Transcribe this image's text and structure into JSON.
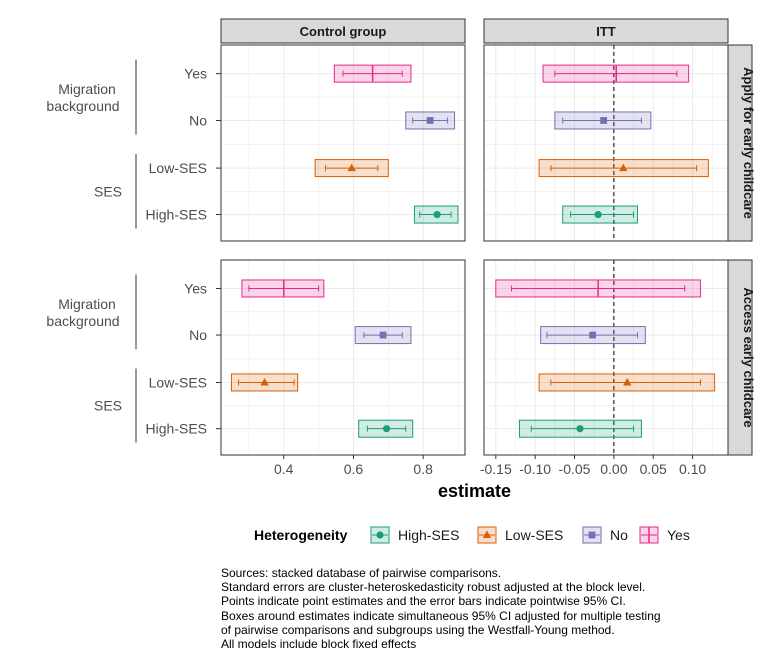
{
  "chart_data": {
    "type": "forest",
    "columns": [
      "Control group",
      "ITT"
    ],
    "rows": [
      "Apply for early childcare",
      "Access early childcare"
    ],
    "xlabel": "estimate",
    "x_ticks": {
      "Control group": [
        "0.4",
        "0.6",
        "0.8"
      ],
      "ITT": [
        "-0.15",
        "-0.10",
        "-0.05",
        "0.00",
        "0.05",
        "0.10"
      ]
    },
    "xlim": {
      "Control group": [
        0.22,
        0.92
      ],
      "ITT": [
        -0.165,
        0.145
      ]
    },
    "reference_line": {
      "panel_column": "ITT",
      "x": 0,
      "style": "dashed"
    },
    "groups": [
      {
        "label": "Migration background",
        "levels": [
          "Yes",
          "No"
        ]
      },
      {
        "label": "SES",
        "levels": [
          "Low-SES",
          "High-SES"
        ]
      }
    ],
    "legend": {
      "title": "Heterogeneity",
      "position": "bottom",
      "entries": [
        {
          "name": "High-SES",
          "color": "#1b9e77",
          "marker": "circle"
        },
        {
          "name": "Low-SES",
          "color": "#d95f02",
          "marker": "triangle"
        },
        {
          "name": "No",
          "color": "#7570b3",
          "marker": "square"
        },
        {
          "name": "Yes",
          "color": "#e7298a",
          "marker": "cross"
        }
      ]
    },
    "panels": [
      {
        "row": "Apply for early childcare",
        "col": "Control group",
        "estimates": [
          {
            "level": "Yes",
            "estimate": 0.655,
            "ci": [
              0.57,
              0.74
            ],
            "box": [
              0.545,
              0.765
            ]
          },
          {
            "level": "No",
            "estimate": 0.82,
            "ci": [
              0.77,
              0.87
            ],
            "box": [
              0.75,
              0.89
            ]
          },
          {
            "level": "Low-SES",
            "estimate": 0.595,
            "ci": [
              0.52,
              0.67
            ],
            "box": [
              0.49,
              0.7
            ]
          },
          {
            "level": "High-SES",
            "estimate": 0.84,
            "ci": [
              0.79,
              0.88
            ],
            "box": [
              0.775,
              0.9
            ]
          }
        ]
      },
      {
        "row": "Apply for early childcare",
        "col": "ITT",
        "estimates": [
          {
            "level": "Yes",
            "estimate": 0.003,
            "ci": [
              -0.075,
              0.08
            ],
            "box": [
              -0.09,
              0.095
            ]
          },
          {
            "level": "No",
            "estimate": -0.013,
            "ci": [
              -0.065,
              0.035
            ],
            "box": [
              -0.075,
              0.047
            ]
          },
          {
            "level": "Low-SES",
            "estimate": 0.012,
            "ci": [
              -0.08,
              0.105
            ],
            "box": [
              -0.095,
              0.12
            ]
          },
          {
            "level": "High-SES",
            "estimate": -0.02,
            "ci": [
              -0.055,
              0.025
            ],
            "box": [
              -0.065,
              0.03
            ]
          }
        ]
      },
      {
        "row": "Access early childcare",
        "col": "Control group",
        "estimates": [
          {
            "level": "Yes",
            "estimate": 0.4,
            "ci": [
              0.3,
              0.5
            ],
            "box": [
              0.28,
              0.515
            ]
          },
          {
            "level": "No",
            "estimate": 0.685,
            "ci": [
              0.63,
              0.74
            ],
            "box": [
              0.605,
              0.765
            ]
          },
          {
            "level": "Low-SES",
            "estimate": 0.345,
            "ci": [
              0.27,
              0.43
            ],
            "box": [
              0.25,
              0.44
            ]
          },
          {
            "level": "High-SES",
            "estimate": 0.695,
            "ci": [
              0.64,
              0.75
            ],
            "box": [
              0.615,
              0.77
            ]
          }
        ]
      },
      {
        "row": "Access early childcare",
        "col": "ITT",
        "estimates": [
          {
            "level": "Yes",
            "estimate": -0.02,
            "ci": [
              -0.13,
              0.09
            ],
            "box": [
              -0.15,
              0.11
            ]
          },
          {
            "level": "No",
            "estimate": -0.027,
            "ci": [
              -0.085,
              0.03
            ],
            "box": [
              -0.093,
              0.04
            ]
          },
          {
            "level": "Low-SES",
            "estimate": 0.017,
            "ci": [
              -0.08,
              0.11
            ],
            "box": [
              -0.095,
              0.128
            ]
          },
          {
            "level": "High-SES",
            "estimate": -0.043,
            "ci": [
              -0.105,
              0.025
            ],
            "box": [
              -0.12,
              0.035
            ]
          }
        ]
      }
    ]
  },
  "caption": [
    "Sources: stacked database of pairwise comparisons.",
    "Standard errors are cluster-heteroskedasticity robust adjusted at the block level.",
    "Points indicate point estimates and the error bars indicate pointwise 95% CI.",
    "Boxes around estimates indicate simultaneous 95% CI adjusted for multiple testing",
    "of pairwise comparisons and subgroups using the Westfall-Young method.",
    "All models include block fixed effects"
  ]
}
